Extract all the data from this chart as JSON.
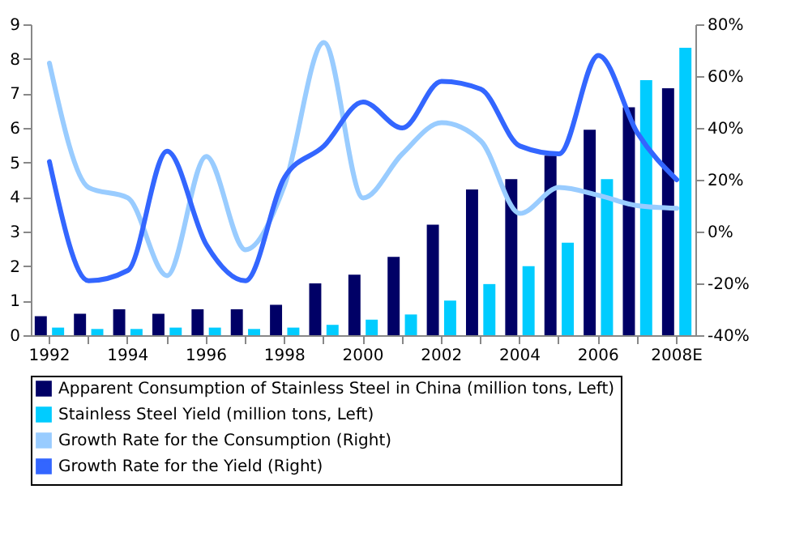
{
  "chart_data": {
    "type": "bar",
    "categories": [
      "1992",
      null,
      "1994",
      null,
      "1996",
      null,
      "1998",
      null,
      "2000",
      null,
      "2002",
      null,
      "2004",
      null,
      "2006",
      null,
      "2008E"
    ],
    "series": [
      {
        "name": "Apparent Consumption of Stainless Steel in China (million tons, Left)",
        "color": "#000066",
        "values": [
          0.55,
          0.62,
          0.75,
          0.62,
          0.75,
          0.75,
          0.88,
          1.5,
          1.75,
          2.27,
          3.2,
          4.22,
          4.52,
          5.2,
          5.95,
          6.6,
          7.15
        ]
      },
      {
        "name": "Stainless Steel Yield (million tons, Left)",
        "color": "#00ccff",
        "values": [
          0.22,
          0.18,
          0.18,
          0.22,
          0.22,
          0.18,
          0.22,
          0.3,
          0.45,
          0.6,
          1.0,
          1.48,
          2.0,
          2.68,
          4.52,
          7.38,
          8.32
        ]
      },
      {
        "name": "Growth Rate for the Consumption (Right)",
        "color": "#99ccff",
        "type": "line",
        "axis": "y2",
        "values": [
          65,
          17,
          13,
          -17,
          29,
          -7,
          18,
          73,
          13,
          30,
          42,
          35,
          7,
          17,
          14,
          10,
          9
        ]
      },
      {
        "name": "Growth Rate for the Yield (Right)",
        "color": "#3366ff",
        "type": "line",
        "axis": "y2",
        "values": [
          27,
          -19,
          -15,
          31,
          -5,
          -19,
          21,
          33,
          50,
          40,
          58,
          55,
          33,
          30,
          68,
          38,
          20
        ]
      }
    ],
    "ylim": [
      0,
      9
    ],
    "yticks": [
      0,
      1,
      2,
      3,
      4,
      5,
      6,
      7,
      8,
      9
    ],
    "y2lim": [
      -40,
      80
    ],
    "y2ticks": [
      {
        "value": -40,
        "label": "-40%"
      },
      {
        "value": -20,
        "label": "-20%"
      },
      {
        "value": 0,
        "label": "0%"
      },
      {
        "value": 20,
        "label": "20%"
      },
      {
        "value": 40,
        "label": "40%"
      },
      {
        "value": 60,
        "label": "60%"
      },
      {
        "value": 80,
        "label": "80%"
      }
    ],
    "grid": false,
    "legend": "bottom"
  }
}
